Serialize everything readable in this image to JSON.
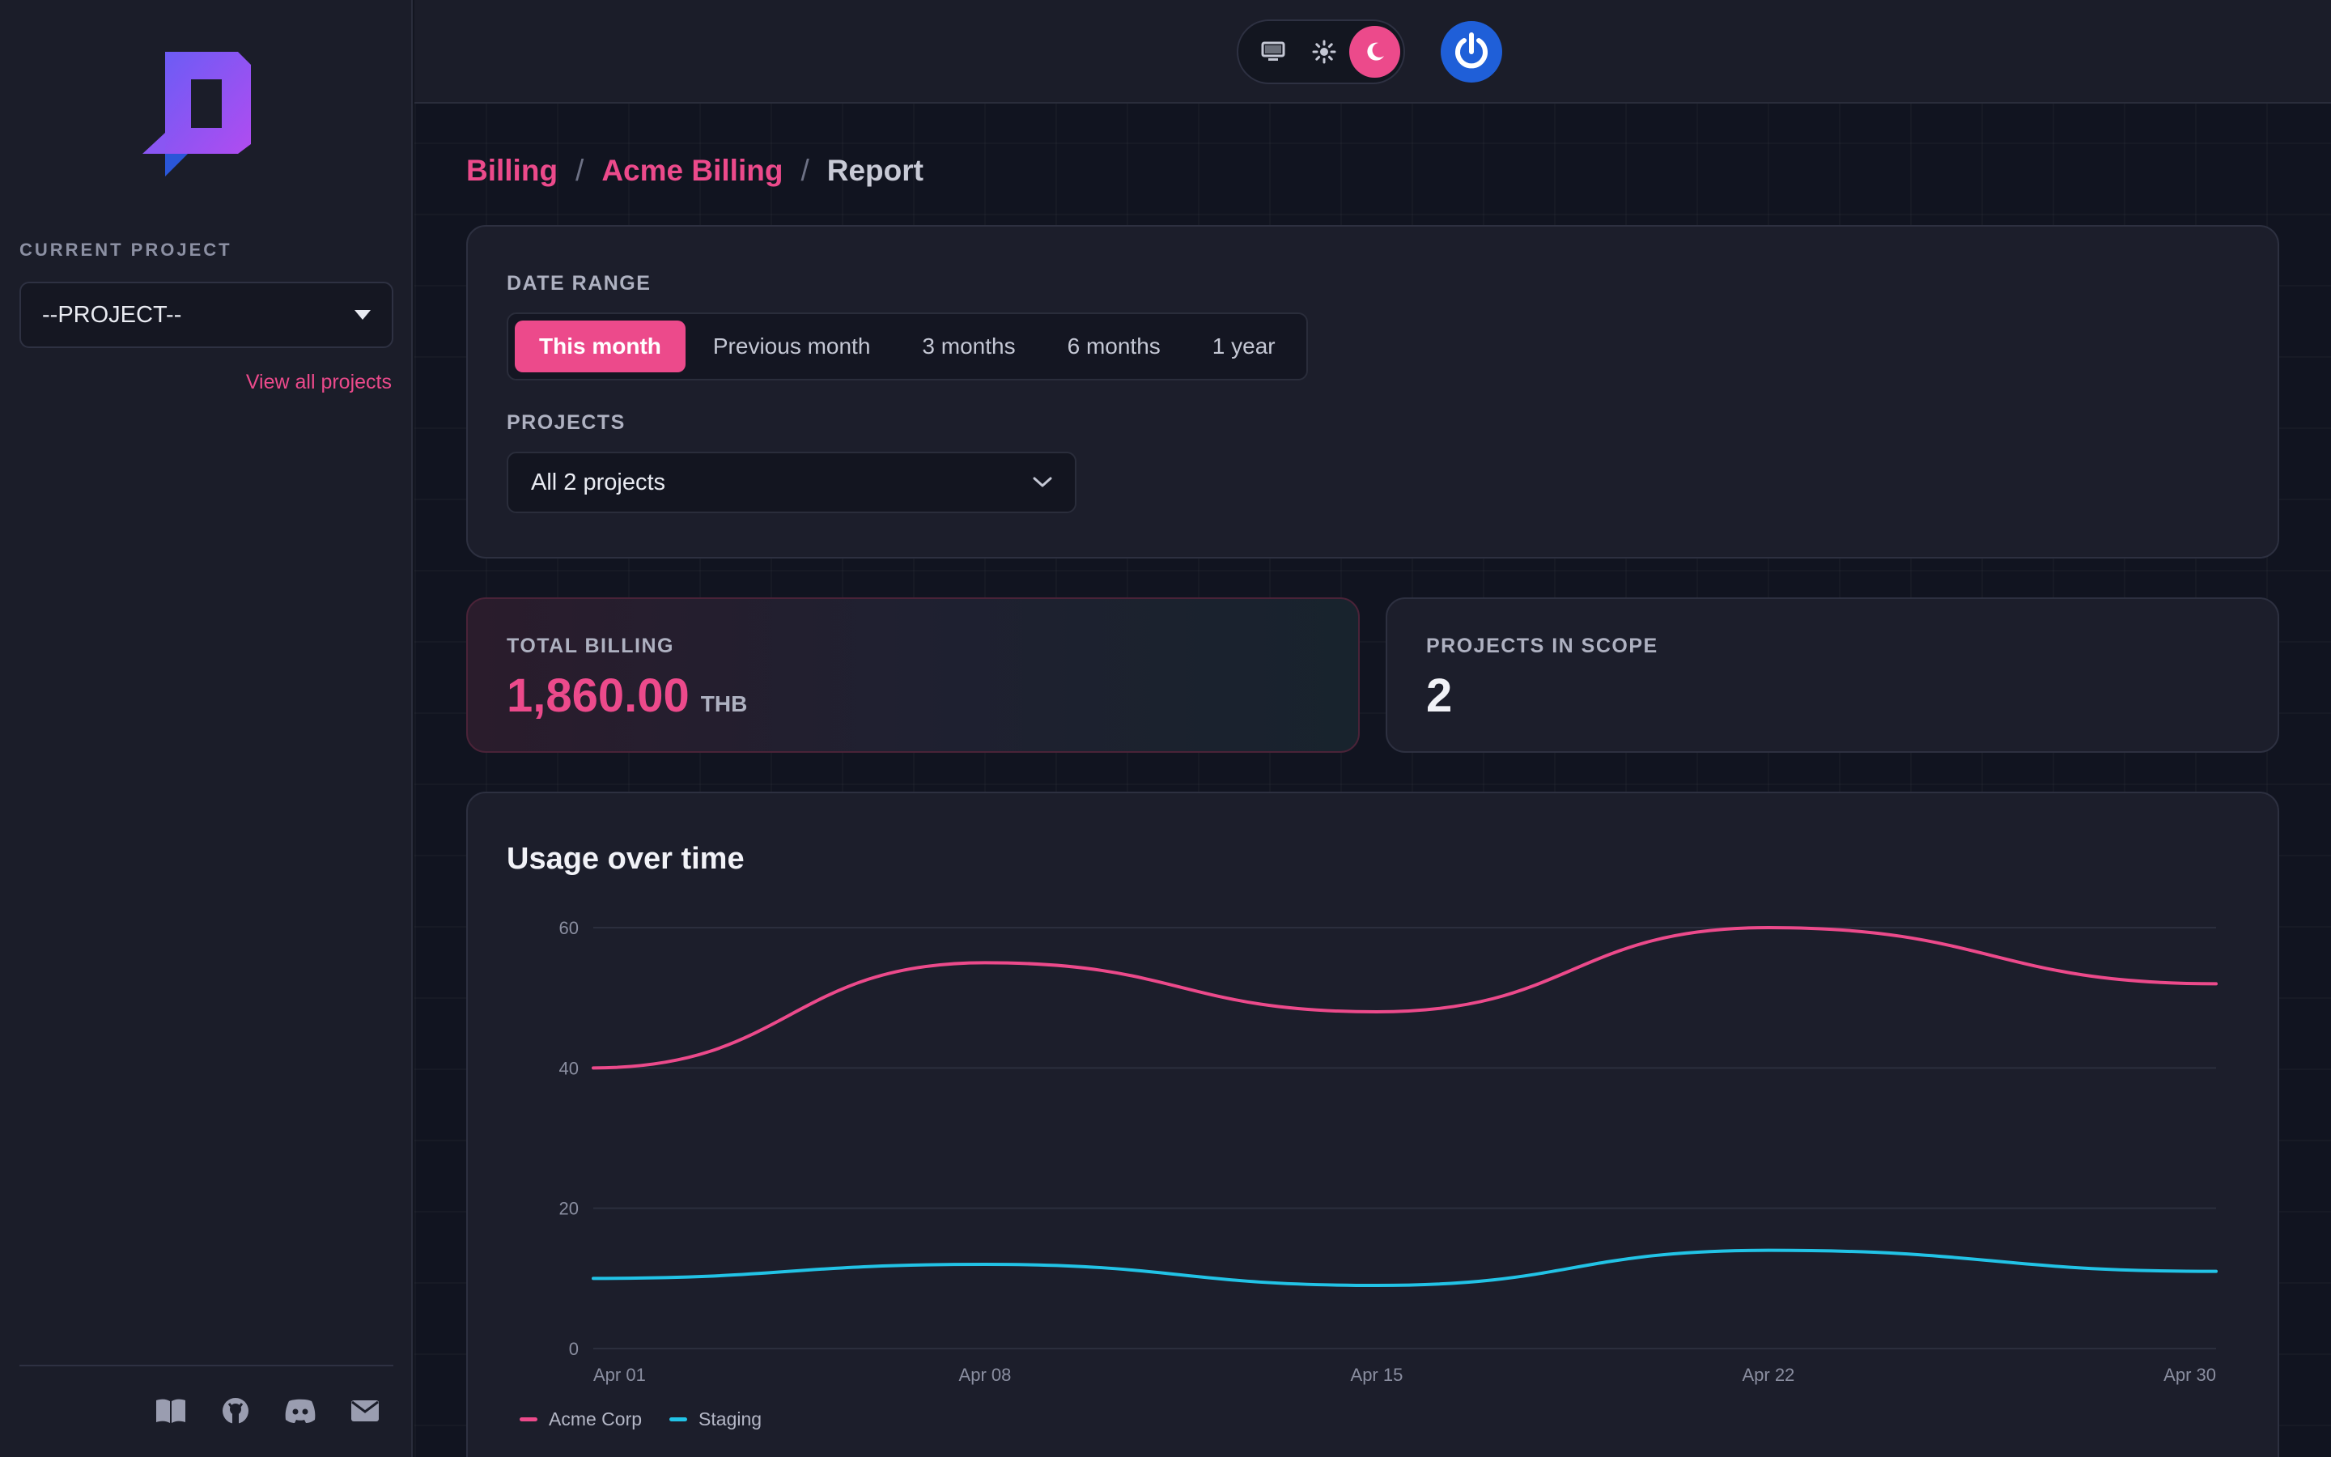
{
  "sidebar": {
    "current_project_label": "CURRENT PROJECT",
    "project_select_value": "--PROJECT--",
    "view_all_label": "View all projects",
    "footer_icons": [
      "book-icon",
      "github-icon",
      "discord-icon",
      "mail-icon"
    ]
  },
  "topbar": {
    "theme_options": [
      "monitor-icon",
      "sun-icon",
      "moon-icon"
    ],
    "active_theme": "moon-icon"
  },
  "breadcrumb": {
    "items": [
      "Billing",
      "Acme Billing",
      "Report"
    ],
    "separator": "/"
  },
  "filters": {
    "date_range_label": "DATE RANGE",
    "date_ranges": [
      "This month",
      "Previous month",
      "3 months",
      "6 months",
      "1 year"
    ],
    "active_date_range": "This month",
    "projects_label": "PROJECTS",
    "projects_value": "All 2 projects"
  },
  "stats": {
    "billing_label": "TOTAL BILLING",
    "billing_value": "1,860.00",
    "billing_unit": "THB",
    "projects_label": "PROJECTS IN SCOPE",
    "projects_value": "2"
  },
  "colors": {
    "accent": "#ec4a8b",
    "series_1": "#ec4a8b",
    "series_2": "#22c3e6"
  },
  "chart_data": {
    "type": "line",
    "title": "Usage over time",
    "x": [
      "Apr 01",
      "Apr 08",
      "Apr 15",
      "Apr 22",
      "Apr 30"
    ],
    "x_day": [
      1,
      8,
      15,
      22,
      30
    ],
    "ylim": [
      0,
      60
    ],
    "yticks": [
      0,
      20,
      40,
      60
    ],
    "grid": true,
    "legend": "bottom-left",
    "series": [
      {
        "name": "Acme Corp",
        "color": "#ec4a8b",
        "values": [
          40,
          55,
          48,
          60,
          52
        ]
      },
      {
        "name": "Staging",
        "color": "#22c3e6",
        "values": [
          10,
          12,
          9,
          14,
          11
        ]
      }
    ]
  }
}
